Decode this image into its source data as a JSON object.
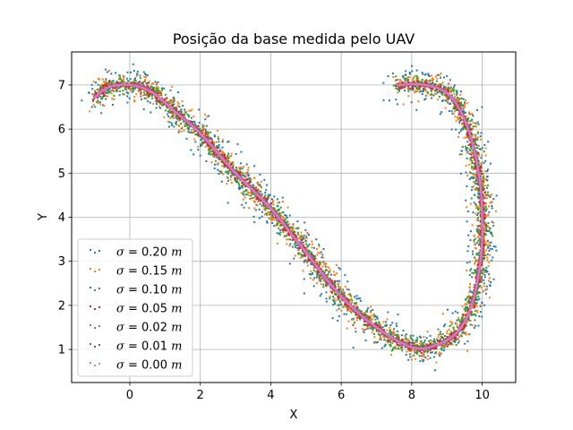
{
  "chart_data": {
    "type": "scatter",
    "title": "Posição da base medida pelo UAV",
    "xlabel": "X",
    "ylabel": "Y",
    "xlim": [
      -1.65,
      10.95
    ],
    "ylim": [
      0.25,
      7.75
    ],
    "xticks": [
      0,
      2,
      4,
      6,
      8,
      10
    ],
    "yticks": [
      1,
      2,
      3,
      4,
      5,
      6,
      7
    ],
    "grid": true,
    "legend_position": "lower-left",
    "path_description_points": [
      [
        -1.0,
        6.72
      ],
      [
        -0.6,
        6.95
      ],
      [
        0.0,
        7.0
      ],
      [
        0.6,
        6.85
      ],
      [
        1.2,
        6.45
      ],
      [
        2.0,
        5.9
      ],
      [
        3.0,
        5.0
      ],
      [
        4.0,
        4.2
      ],
      [
        5.0,
        3.2
      ],
      [
        6.0,
        2.2
      ],
      [
        7.0,
        1.5
      ],
      [
        8.0,
        1.05
      ],
      [
        8.7,
        1.1
      ],
      [
        9.3,
        1.4
      ],
      [
        9.7,
        2.0
      ],
      [
        9.95,
        3.0
      ],
      [
        10.0,
        4.0
      ],
      [
        9.9,
        5.0
      ],
      [
        9.6,
        6.0
      ],
      [
        9.1,
        6.75
      ],
      [
        8.4,
        7.0
      ],
      [
        7.6,
        7.0
      ]
    ],
    "series": [
      {
        "name": "σ = 0.20 m",
        "sigma_label": "σ",
        "sigma_value_label": " = 0.20 ",
        "unit": "m",
        "noise": 0.2,
        "color": "#1f77b4",
        "count": 1100
      },
      {
        "name": "σ = 0.15 m",
        "sigma_label": "σ",
        "sigma_value_label": " = 0.15 ",
        "unit": "m",
        "noise": 0.15,
        "color": "#ff7f0e",
        "count": 1100
      },
      {
        "name": "σ = 0.10 m",
        "sigma_label": "σ",
        "sigma_value_label": " = 0.10 ",
        "unit": "m",
        "noise": 0.1,
        "color": "#2ca02c",
        "count": 1100
      },
      {
        "name": "σ = 0.05 m",
        "sigma_label": "σ",
        "sigma_value_label": " = 0.05 ",
        "unit": "m",
        "noise": 0.05,
        "color": "#d62728",
        "count": 1100
      },
      {
        "name": "σ = 0.02 m",
        "sigma_label": "σ",
        "sigma_value_label": " = 0.02 ",
        "unit": "m",
        "noise": 0.02,
        "color": "#9467bd",
        "count": 1100
      },
      {
        "name": "σ = 0.01 m",
        "sigma_label": "σ",
        "sigma_value_label": " = 0.01 ",
        "unit": "m",
        "noise": 0.01,
        "color": "#8c564b",
        "count": 1100
      },
      {
        "name": "σ = 0.00 m",
        "sigma_label": "σ",
        "sigma_value_label": " = 0.00 ",
        "unit": "m",
        "noise": 0.0,
        "color": "#e377c2",
        "count": 1100
      }
    ]
  }
}
